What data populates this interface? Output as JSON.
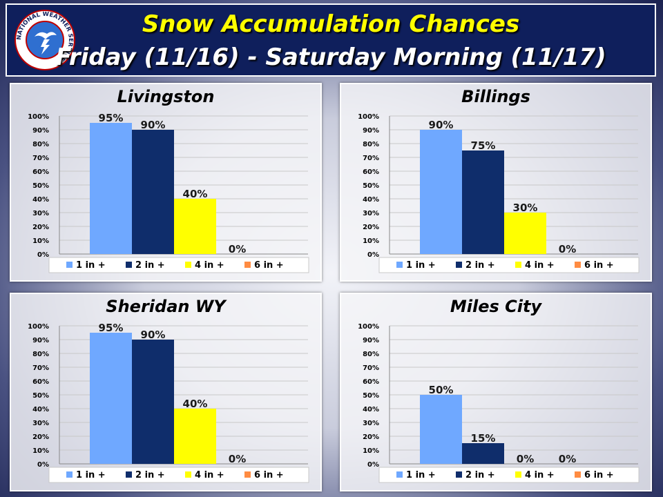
{
  "header": {
    "title": "Snow Accumulation Chances",
    "subtitle": "Friday (11/16) - Saturday Morning (11/17)",
    "logo_text": "NATIONAL WEATHER SERVICE",
    "logo_icon": "nws-logo-icon"
  },
  "colors": {
    "header_bg": "#0f1f5c",
    "title": "#ffff00",
    "series": [
      "#6fa8ff",
      "#0f2d6b",
      "#ffff00",
      "#ff8c42"
    ]
  },
  "chart_data": [
    {
      "type": "bar",
      "title": "Livingston",
      "series": [
        {
          "name": "1 in +",
          "values": [
            95
          ]
        },
        {
          "name": "2 in +",
          "values": [
            90
          ]
        },
        {
          "name": "4 in +",
          "values": [
            40
          ]
        },
        {
          "name": "6 in +",
          "values": [
            0
          ]
        }
      ],
      "yticks": [
        "0%",
        "10%",
        "20%",
        "30%",
        "40%",
        "50%",
        "60%",
        "70%",
        "80%",
        "90%",
        "100%"
      ],
      "ylim": [
        0,
        100
      ],
      "legend": "bottom",
      "grid": true
    },
    {
      "type": "bar",
      "title": "Billings",
      "series": [
        {
          "name": "1 in +",
          "values": [
            90
          ]
        },
        {
          "name": "2 in +",
          "values": [
            75
          ]
        },
        {
          "name": "4 in +",
          "values": [
            30
          ]
        },
        {
          "name": "6 in +",
          "values": [
            0
          ]
        }
      ],
      "yticks": [
        "0%",
        "10%",
        "20%",
        "30%",
        "40%",
        "50%",
        "60%",
        "70%",
        "80%",
        "90%",
        "100%"
      ],
      "ylim": [
        0,
        100
      ],
      "legend": "bottom",
      "grid": true
    },
    {
      "type": "bar",
      "title": "Sheridan WY",
      "series": [
        {
          "name": "1 in +",
          "values": [
            95
          ]
        },
        {
          "name": "2 in +",
          "values": [
            90
          ]
        },
        {
          "name": "4 in +",
          "values": [
            40
          ]
        },
        {
          "name": "6 in +",
          "values": [
            0
          ]
        }
      ],
      "yticks": [
        "0%",
        "10%",
        "20%",
        "30%",
        "40%",
        "50%",
        "60%",
        "70%",
        "80%",
        "90%",
        "100%"
      ],
      "ylim": [
        0,
        100
      ],
      "legend": "bottom",
      "grid": true
    },
    {
      "type": "bar",
      "title": "Miles City",
      "series": [
        {
          "name": "1 in +",
          "values": [
            50
          ]
        },
        {
          "name": "2 in +",
          "values": [
            15
          ]
        },
        {
          "name": "4 in +",
          "values": [
            0
          ]
        },
        {
          "name": "6 in +",
          "values": [
            0
          ]
        }
      ],
      "yticks": [
        "0%",
        "10%",
        "20%",
        "30%",
        "40%",
        "50%",
        "60%",
        "70%",
        "80%",
        "90%",
        "100%"
      ],
      "ylim": [
        0,
        100
      ],
      "legend": "bottom",
      "grid": true
    }
  ]
}
